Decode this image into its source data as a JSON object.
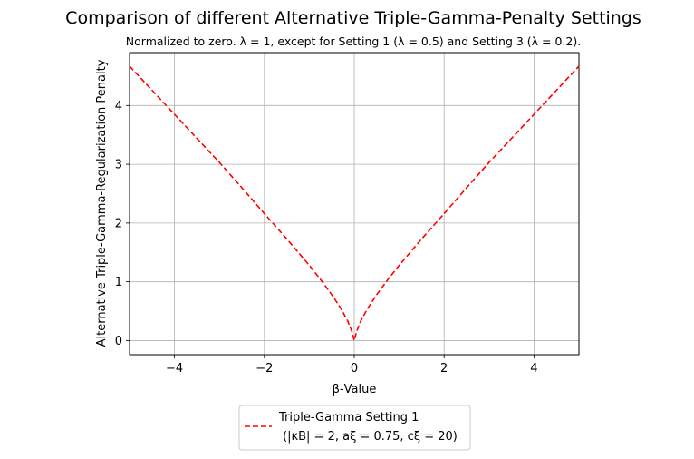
{
  "chart_data": {
    "type": "line",
    "title": "Comparison of different Alternative Triple-Gamma-Penalty Settings",
    "subtitle": "Normalized to zero. λ = 1, except for Setting 1 (λ = 0.5) and Setting 3 (λ = 0.2).",
    "xlabel": "β-Value",
    "ylabel": "Alternative Triple-Gamma-Regularization Penalty",
    "xlim": [
      -5,
      5
    ],
    "ylim": [
      -0.24,
      4.9
    ],
    "grid": true,
    "x_ticks": [
      -4,
      -2,
      0,
      2,
      4
    ],
    "x_tick_labels": [
      "−4",
      "−2",
      "0",
      "2",
      "4"
    ],
    "y_ticks": [
      0,
      1,
      2,
      3,
      4
    ],
    "y_tick_labels": [
      "0",
      "1",
      "2",
      "3",
      "4"
    ],
    "legend_position": "below",
    "series": [
      {
        "name": "Triple-Gamma Setting 1",
        "name_line2": "(|κB| = 2, aξ = 0.75, cξ = 20)",
        "color": "#ff0000",
        "linestyle": "dashed",
        "x": [
          -5,
          -4.5,
          -4,
          -3.5,
          -3,
          -2.5,
          -2,
          -1.5,
          -1,
          -0.75,
          -0.5,
          -0.3,
          -0.15,
          -0.05,
          0,
          0.05,
          0.15,
          0.3,
          0.5,
          0.75,
          1,
          1.5,
          2,
          2.5,
          3,
          3.5,
          4,
          4.5,
          5
        ],
        "y": [
          4.67,
          4.26,
          3.85,
          3.44,
          3.03,
          2.6,
          2.16,
          1.73,
          1.28,
          1.04,
          0.78,
          0.55,
          0.34,
          0.15,
          0.0,
          0.15,
          0.34,
          0.55,
          0.78,
          1.04,
          1.28,
          1.73,
          2.16,
          2.6,
          3.03,
          3.44,
          3.85,
          4.26,
          4.67
        ]
      }
    ]
  }
}
